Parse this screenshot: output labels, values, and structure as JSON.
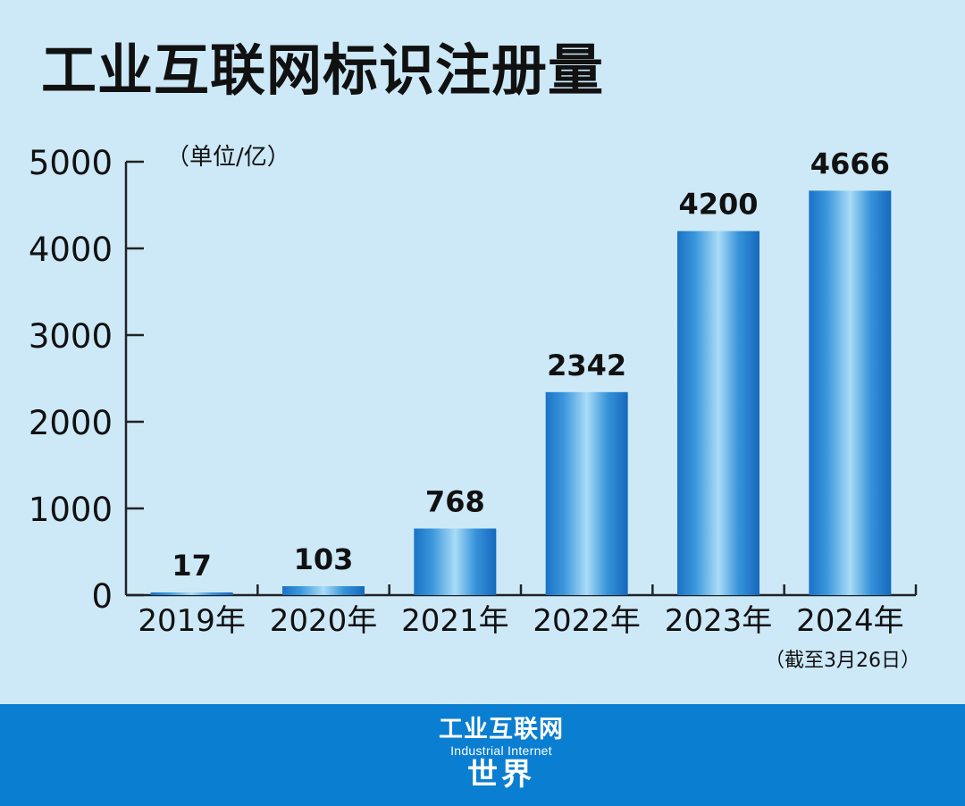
{
  "chart_data": {
    "type": "bar",
    "title": "工业互联网标识注册量",
    "unit_label": "（单位/亿）",
    "categories": [
      "2019年",
      "2020年",
      "2021年",
      "2022年",
      "2023年",
      "2024年"
    ],
    "values": [
      17,
      103,
      768,
      2342,
      4200,
      4666
    ],
    "value_labels": [
      "17",
      "103",
      "768",
      "2342",
      "4200",
      "4666"
    ],
    "y_ticks": [
      "0",
      "1000",
      "2000",
      "3000",
      "4000",
      "5000"
    ],
    "ylim": [
      0,
      5000
    ],
    "footnote": "（截至3月26日）",
    "grid": false,
    "bar_color": "#1b7fd0"
  },
  "footer": {
    "logo_cn": "工业互联网",
    "logo_en": "Industrial Internet",
    "logo_cn2": "世界",
    "background": "#0a7ed1"
  }
}
